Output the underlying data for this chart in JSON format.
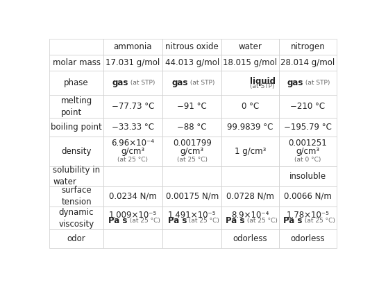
{
  "col_headers": [
    "",
    "ammonia",
    "nitrous oxide",
    "water",
    "nitrogen"
  ],
  "rows": [
    {
      "label": "molar mass",
      "cells": [
        {
          "lines": [
            [
              "17.031 g/mol",
              "normal",
              8.5
            ]
          ]
        },
        {
          "lines": [
            [
              "44.013 g/mol",
              "normal",
              8.5
            ]
          ]
        },
        {
          "lines": [
            [
              "18.015 g/mol",
              "normal",
              8.5
            ]
          ]
        },
        {
          "lines": [
            [
              "28.014 g/mol",
              "normal",
              8.5
            ]
          ]
        }
      ]
    },
    {
      "label": "phase",
      "cells": [
        {
          "mixed": [
            [
              "gas",
              "bold",
              8.5
            ],
            [
              " (at STP)",
              "normal",
              6.5
            ]
          ]
        },
        {
          "mixed": [
            [
              "gas",
              "bold",
              8.5
            ],
            [
              " (at STP)",
              "normal",
              6.5
            ]
          ]
        },
        {
          "stacked": [
            [
              "liquid",
              "bold",
              8.5
            ],
            [
              "(at STP)",
              "normal",
              6.5
            ]
          ]
        },
        {
          "mixed": [
            [
              "gas",
              "bold",
              8.5
            ],
            [
              " (at STP)",
              "normal",
              6.5
            ]
          ]
        }
      ]
    },
    {
      "label": "melting\npoint",
      "cells": [
        {
          "lines": [
            [
              "−77.73 °C",
              "normal",
              8.5
            ]
          ]
        },
        {
          "lines": [
            [
              "−91 °C",
              "normal",
              8.5
            ]
          ]
        },
        {
          "lines": [
            [
              "0 °C",
              "normal",
              8.5
            ]
          ]
        },
        {
          "lines": [
            [
              "−210 °C",
              "normal",
              8.5
            ]
          ]
        }
      ]
    },
    {
      "label": "boiling point",
      "cells": [
        {
          "lines": [
            [
              "−33.33 °C",
              "normal",
              8.5
            ]
          ]
        },
        {
          "lines": [
            [
              "−88 °C",
              "normal",
              8.5
            ]
          ]
        },
        {
          "lines": [
            [
              "99.9839 °C",
              "normal",
              8.5
            ]
          ]
        },
        {
          "lines": [
            [
              "−195.79 °C",
              "normal",
              8.5
            ]
          ]
        }
      ]
    },
    {
      "label": "density",
      "cells": [
        {
          "stacked3": [
            [
              "6.96×10⁻⁴",
              "normal",
              8.5
            ],
            [
              "g/cm³",
              "normal",
              8.5
            ],
            [
              "(at 25 °C)",
              "normal",
              6.5
            ]
          ]
        },
        {
          "stacked3": [
            [
              "0.001799",
              "normal",
              8.5
            ],
            [
              "g/cm³",
              "normal",
              8.5
            ],
            [
              "(at 25 °C)",
              "normal",
              6.5
            ]
          ]
        },
        {
          "lines": [
            [
              "1 g/cm³",
              "normal",
              8.5
            ]
          ]
        },
        {
          "stacked3": [
            [
              "0.001251",
              "normal",
              8.5
            ],
            [
              "g/cm³",
              "normal",
              8.5
            ],
            [
              "(at 0 °C)",
              "normal",
              6.5
            ]
          ]
        }
      ]
    },
    {
      "label": "solubility in\nwater",
      "cells": [
        {
          "lines": [
            [
              "",
              "normal",
              8.5
            ]
          ]
        },
        {
          "lines": [
            [
              "",
              "normal",
              8.5
            ]
          ]
        },
        {
          "lines": [
            [
              "",
              "normal",
              8.5
            ]
          ]
        },
        {
          "lines": [
            [
              "insoluble",
              "normal",
              8.5
            ]
          ]
        }
      ]
    },
    {
      "label": "surface\ntension",
      "cells": [
        {
          "lines": [
            [
              "0.0234 N/m",
              "normal",
              8.5
            ]
          ]
        },
        {
          "lines": [
            [
              "0.00175 N/m",
              "normal",
              8.5
            ]
          ]
        },
        {
          "lines": [
            [
              "0.0728 N/m",
              "normal",
              8.5
            ]
          ]
        },
        {
          "lines": [
            [
              "0.0066 N/m",
              "normal",
              8.5
            ]
          ]
        }
      ]
    },
    {
      "label": "dynamic\nviscosity",
      "cells": [
        {
          "visc": [
            [
              "1.009×10⁻⁵",
              "normal",
              8.5
            ],
            [
              "Pa s",
              "bold",
              8.5
            ],
            [
              " (at 25 °C)",
              "normal",
              6.5
            ]
          ]
        },
        {
          "visc": [
            [
              "1.491×10⁻⁵",
              "normal",
              8.5
            ],
            [
              "Pa s",
              "bold",
              8.5
            ],
            [
              " (at 25 °C)",
              "normal",
              6.5
            ]
          ]
        },
        {
          "visc": [
            [
              "8.9×10⁻⁴",
              "normal",
              8.5
            ],
            [
              "Pa s",
              "bold",
              8.5
            ],
            [
              " (at 25 °C)",
              "normal",
              6.5
            ]
          ]
        },
        {
          "visc": [
            [
              "1.78×10⁻⁵",
              "normal",
              8.5
            ],
            [
              "Pa s",
              "bold",
              8.5
            ],
            [
              " (at 25 °C)",
              "normal",
              6.5
            ]
          ]
        }
      ]
    },
    {
      "label": "odor",
      "cells": [
        {
          "lines": [
            [
              "",
              "normal",
              8.5
            ]
          ]
        },
        {
          "lines": [
            [
              "",
              "normal",
              8.5
            ]
          ]
        },
        {
          "lines": [
            [
              "odorless",
              "normal",
              8.5
            ]
          ]
        },
        {
          "lines": [
            [
              "odorless",
              "normal",
              8.5
            ]
          ]
        }
      ]
    }
  ],
  "bg_color": "#ffffff",
  "border_color": "#cccccc",
  "text_color": "#222222",
  "sub_color": "#666666",
  "header_fontsize": 8.5,
  "label_fontsize": 8.5
}
